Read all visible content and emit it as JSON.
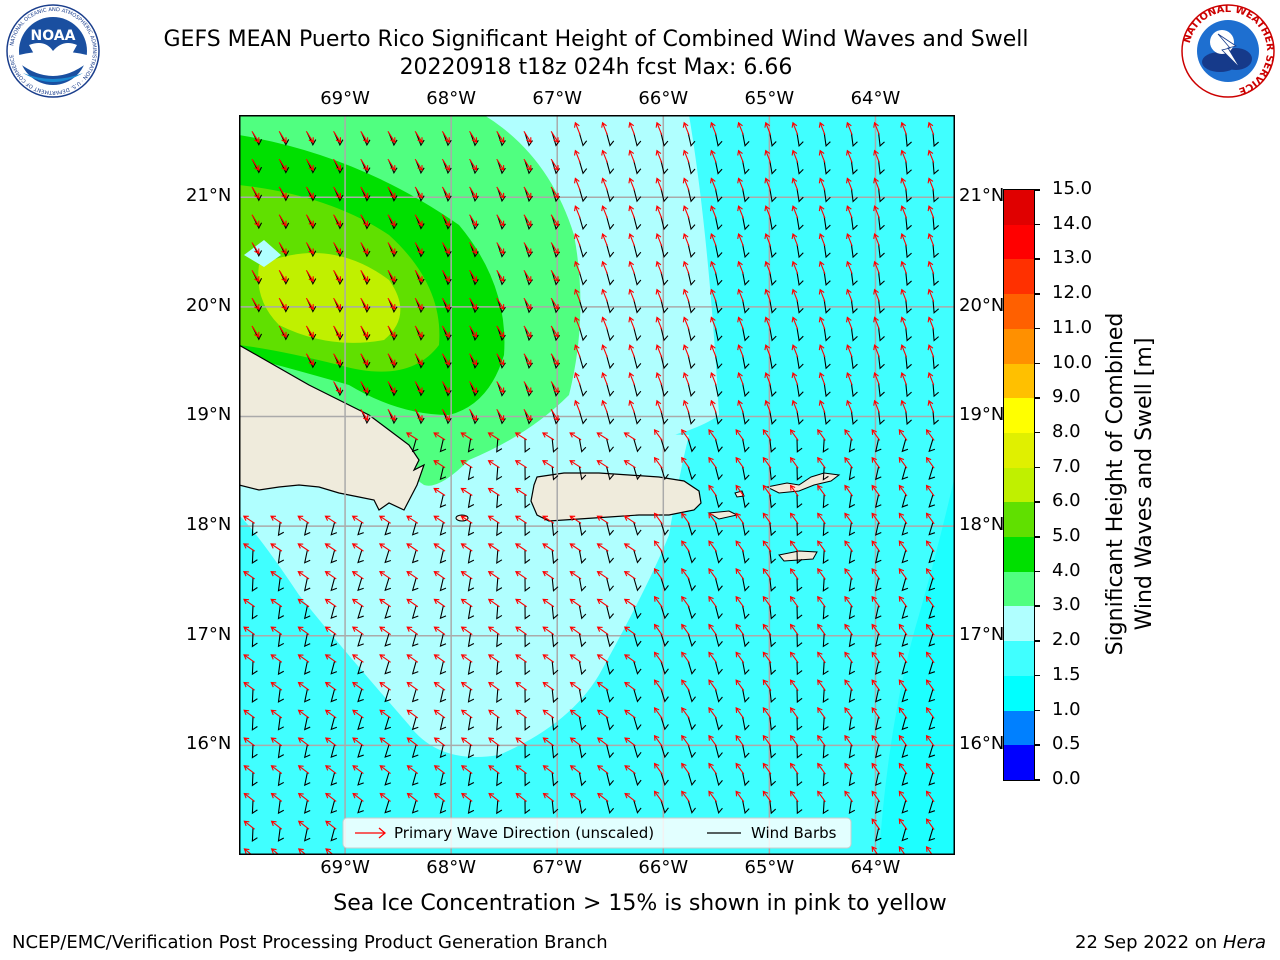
{
  "header": {
    "title_line1": "GEFS MEAN Puerto Rico Significant Height of Combined Wind Waves and Swell",
    "title_line2": "20220918 t18z 024h fcst   Max: 6.66"
  },
  "logos": {
    "left": {
      "text": "NOAA",
      "ring_text": "NATIONAL OCEANIC AND ATMOSPHERIC ADMINISTRATION · U.S. DEPARTMENT OF COMMERCE",
      "icon": "noaa-logo"
    },
    "right": {
      "ring_text": "NATIONAL WEATHER SERVICE",
      "icon": "nws-logo"
    }
  },
  "map": {
    "lon_labels": [
      "69°W",
      "68°W",
      "67°W",
      "66°W",
      "65°W",
      "64°W"
    ],
    "lat_labels": [
      "21°N",
      "20°N",
      "19°N",
      "18°N",
      "17°N",
      "16°N"
    ],
    "lon_range": [
      -70.0,
      -63.25
    ],
    "lat_range": [
      15.0,
      21.75
    ],
    "legend": {
      "wave_label": "Primary Wave Direction (unscaled)",
      "barb_label": "Wind Barbs"
    }
  },
  "colorbar": {
    "label_line1": "Significant Height of Combined",
    "label_line2": "Wind Waves and Swell [m]",
    "ticks": [
      "0.0",
      "0.5",
      "1.0",
      "1.5",
      "2.0",
      "3.0",
      "4.0",
      "5.0",
      "6.0",
      "7.0",
      "8.0",
      "9.0",
      "10.0",
      "11.0",
      "12.0",
      "13.0",
      "14.0",
      "15.0"
    ],
    "colors": [
      "#0000ff",
      "#0080ff",
      "#00ffff",
      "#40ffff",
      "#b0ffff",
      "#50ff80",
      "#00e000",
      "#60e000",
      "#c0f000",
      "#e0f000",
      "#ffff00",
      "#ffc000",
      "#ff9000",
      "#ff6000",
      "#ff3000",
      "#ff0000",
      "#e00000"
    ]
  },
  "caption": "Sea Ice Concentration > 15% is shown in pink to yellow",
  "footer": {
    "left": "NCEP/EMC/Verification Post Processing Product Generation Branch",
    "right_date": "22 Sep 2022 on ",
    "right_host": "Hera"
  }
}
